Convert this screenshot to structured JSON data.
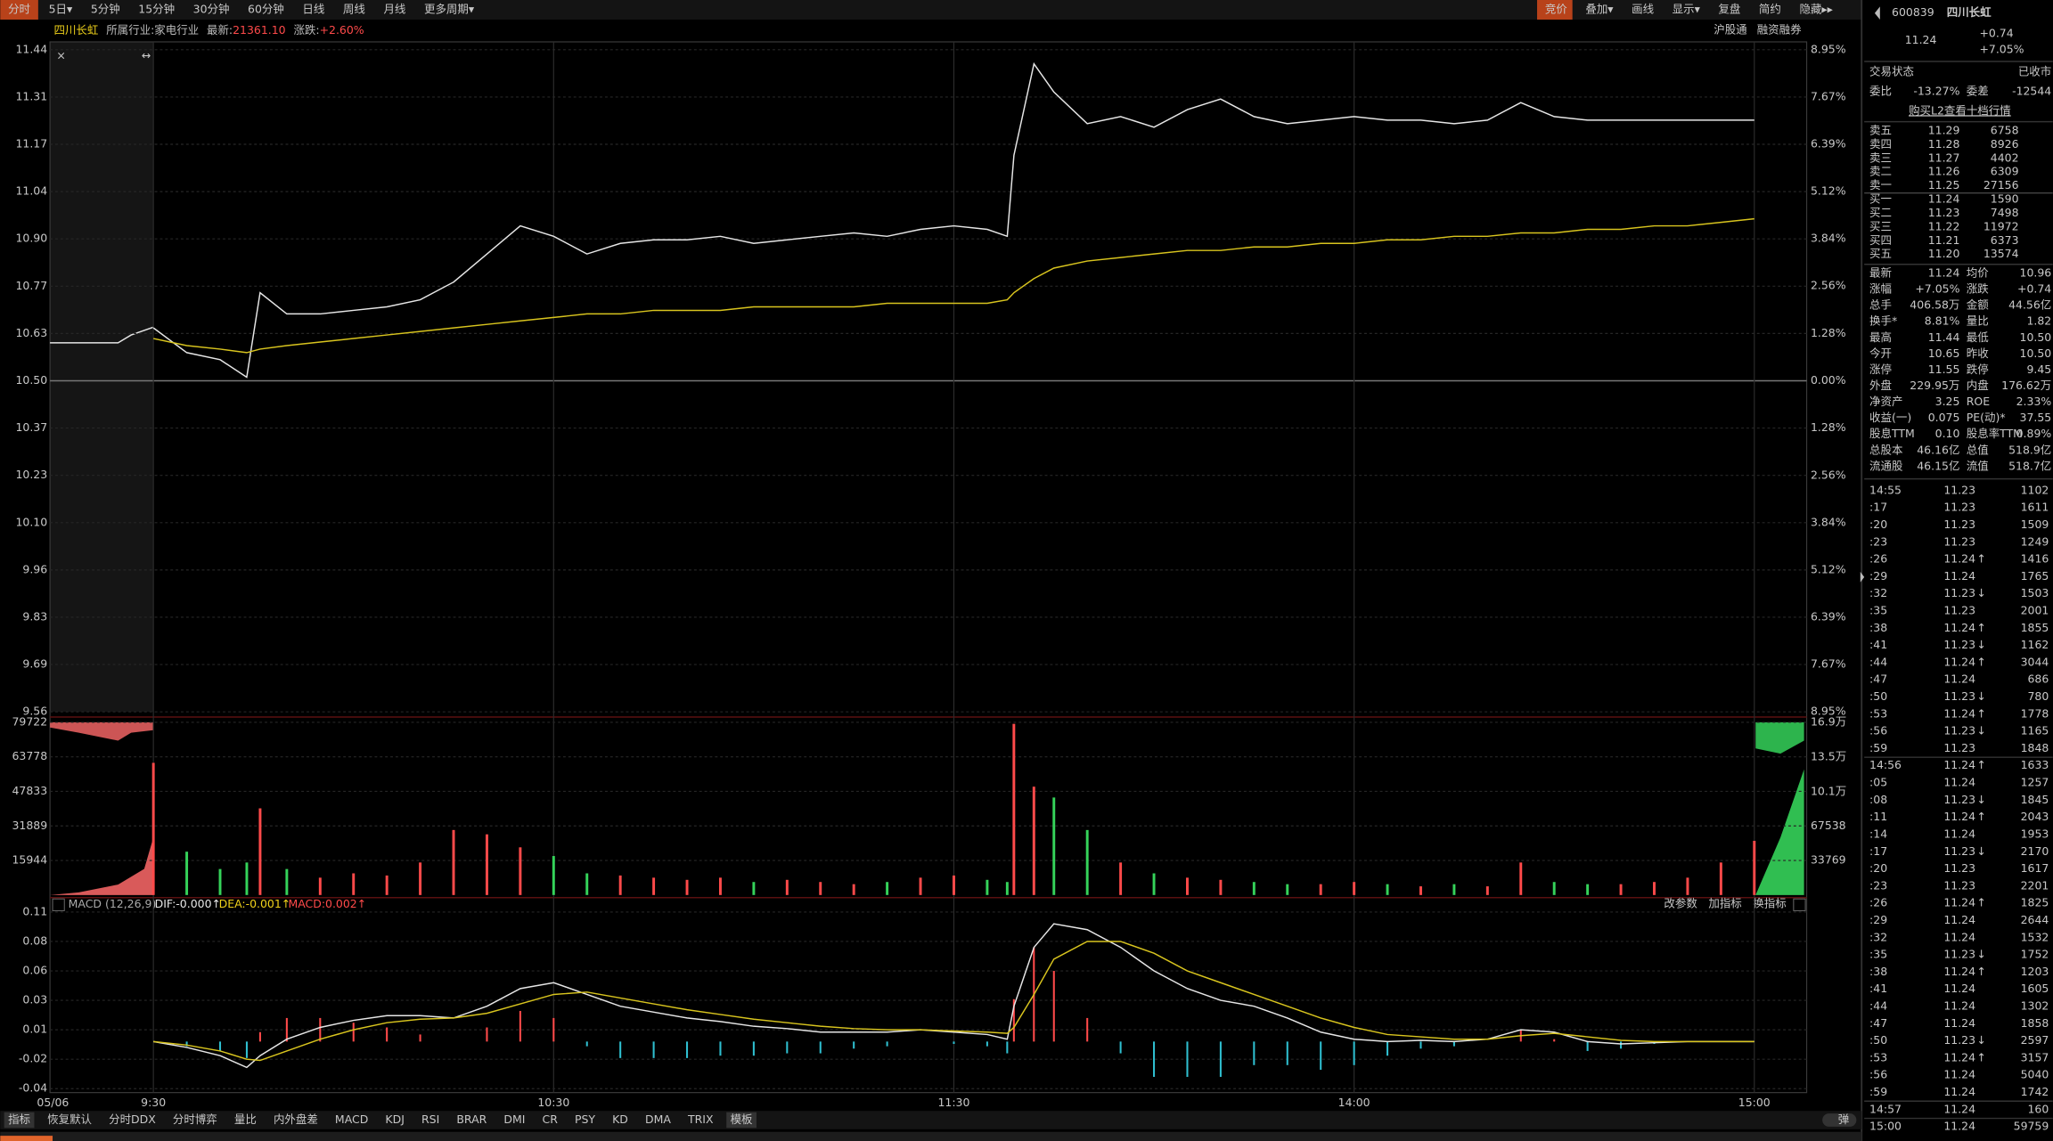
{
  "toolbar": {
    "left": [
      "分时",
      "5日▾",
      "5分钟",
      "15分钟",
      "30分钟",
      "60分钟",
      "日线",
      "周线",
      "月线",
      "更多周期▾"
    ],
    "right": [
      "竞价",
      "叠加▾",
      "画线",
      "显示▾",
      "复盘",
      "简约",
      "隐藏▸▸"
    ]
  },
  "info": {
    "name": "四川长虹",
    "industry_label": "所属行业:",
    "industry": "家电行业",
    "latest_label": "最新:",
    "latest": "21361.10",
    "change_label": "涨跌:",
    "change": "+2.60%",
    "right": [
      "沪股通",
      "融资融券"
    ]
  },
  "date": "05/06",
  "macd_legend": {
    "name": "MACD (12,26,9)",
    "dif": "DIF:-0.000↑",
    "dea": "DEA:-0.001↑",
    "macd": "MACD:0.002↑"
  },
  "indicator_actions": [
    "改参数",
    "加指标",
    "换指标"
  ],
  "bottom_tabs": [
    "指标",
    "恢复默认",
    "分时DDX",
    "分时博弈",
    "量比",
    "内外盘差",
    "MACD",
    "KDJ",
    "RSI",
    "BRAR",
    "DMI",
    "CR",
    "PSY",
    "KD",
    "DMA",
    "TRIX",
    "模板"
  ],
  "bottom_right": "弹",
  "chart_data": [
    {
      "type": "line",
      "x": [
        0,
        5,
        10,
        14,
        16,
        20,
        25,
        30,
        35,
        40,
        45,
        50,
        55,
        60,
        65,
        70,
        75,
        80,
        85,
        90,
        95,
        100,
        105,
        110,
        115,
        120,
        125,
        128,
        129,
        132,
        135,
        140,
        145,
        150,
        155,
        160,
        165,
        170,
        175,
        180,
        185,
        190,
        195,
        200,
        205,
        210,
        215,
        220,
        225,
        230,
        235,
        240
      ],
      "series": [
        {
          "color": "#e6e6e6",
          "values": [
            10.65,
            10.58,
            10.56,
            10.51,
            10.75,
            10.69,
            10.69,
            10.7,
            10.71,
            10.73,
            10.78,
            10.86,
            10.94,
            10.91,
            10.86,
            10.89,
            10.9,
            10.9,
            10.91,
            10.89,
            10.9,
            10.91,
            10.92,
            10.91,
            10.93,
            10.94,
            10.93,
            10.91,
            11.14,
            11.4,
            11.32,
            11.23,
            11.25,
            11.22,
            11.27,
            11.3,
            11.25,
            11.23,
            11.24,
            11.25,
            11.24,
            11.24,
            11.23,
            11.24,
            11.29,
            11.25,
            11.24,
            11.24,
            11.24,
            11.24,
            11.24,
            11.24
          ]
        },
        {
          "color": "#d8c41e",
          "values": [
            10.62,
            10.6,
            10.59,
            10.58,
            10.59,
            10.6,
            10.61,
            10.62,
            10.63,
            10.64,
            10.65,
            10.66,
            10.67,
            10.68,
            10.69,
            10.69,
            10.7,
            10.7,
            10.7,
            10.71,
            10.71,
            10.71,
            10.71,
            10.72,
            10.72,
            10.72,
            10.72,
            10.73,
            10.75,
            10.79,
            10.82,
            10.84,
            10.85,
            10.86,
            10.87,
            10.87,
            10.88,
            10.88,
            10.89,
            10.89,
            10.9,
            10.9,
            10.91,
            10.91,
            10.92,
            10.92,
            10.93,
            10.93,
            10.94,
            10.94,
            10.95,
            10.96
          ]
        }
      ],
      "xlim": [
        0,
        240
      ],
      "xticks": [
        {
          "value": 0,
          "label": "9:30"
        },
        {
          "value": 60,
          "label": "10:30"
        },
        {
          "value": 120,
          "label": "11:30"
        },
        {
          "value": 180,
          "label": "14:00"
        },
        {
          "value": 240,
          "label": "15:00"
        }
      ],
      "ylim": [
        9.56,
        11.44
      ],
      "yticks": [
        11.44,
        {
          "value": 11.3057,
          "label": "11.31"
        },
        {
          "value": 11.1714,
          "label": "11.17"
        },
        {
          "value": 11.0371,
          "label": "11.04"
        },
        {
          "value": 10.9029,
          "label": "10.90"
        },
        {
          "value": 10.7686,
          "label": "10.77"
        },
        {
          "value": 10.6343,
          "label": "10.63"
        },
        {
          "value": 10.5,
          "label": "10.50"
        },
        {
          "value": 10.3657,
          "label": "10.37"
        },
        {
          "value": 10.2314,
          "label": "10.23"
        },
        {
          "value": 10.0971,
          "label": "10.10"
        },
        {
          "value": 9.9629,
          "label": "9.96"
        },
        {
          "value": 9.8286,
          "label": "9.83"
        },
        {
          "value": 9.6943,
          "label": "9.69"
        },
        9.56
      ],
      "y2lim": [
        -8.95,
        8.95
      ],
      "y2ticks": [
        {
          "value": 8.95,
          "label": "8.95%"
        },
        {
          "value": 7.67,
          "label": "7.67%"
        },
        {
          "value": 6.39,
          "label": "6.39%"
        },
        {
          "value": 5.12,
          "label": "5.12%"
        },
        {
          "value": 3.84,
          "label": "3.84%"
        },
        {
          "value": 2.56,
          "label": "2.56%"
        },
        {
          "value": 1.28,
          "label": "1.28%"
        },
        {
          "value": 0,
          "label": "0.00%"
        },
        {
          "value": -1.28,
          "label": "1.28%"
        },
        {
          "value": -2.56,
          "label": "2.56%"
        },
        {
          "value": -3.84,
          "label": "3.84%"
        },
        {
          "value": -5.12,
          "label": "5.12%"
        },
        {
          "value": -6.39,
          "label": "6.39%"
        },
        {
          "value": -7.67,
          "label": "7.67%"
        },
        {
          "value": -8.95,
          "label": "8.95%"
        }
      ],
      "grid": true
    },
    {
      "type": "bar",
      "x": [
        0,
        5,
        10,
        14,
        16,
        20,
        25,
        30,
        35,
        40,
        45,
        50,
        55,
        60,
        65,
        70,
        75,
        80,
        85,
        90,
        95,
        100,
        105,
        110,
        115,
        120,
        125,
        128,
        129,
        132,
        135,
        140,
        145,
        150,
        155,
        160,
        165,
        170,
        175,
        180,
        185,
        190,
        195,
        200,
        205,
        210,
        215,
        220,
        225,
        230,
        235,
        240
      ],
      "values": [
        61000,
        20000,
        12000,
        15000,
        40000,
        12000,
        8000,
        10000,
        9000,
        15000,
        30000,
        28000,
        22000,
        18000,
        10000,
        9000,
        8000,
        7000,
        8000,
        6000,
        7000,
        6000,
        5000,
        6000,
        8000,
        9000,
        7000,
        6000,
        79000,
        50000,
        45000,
        30000,
        15000,
        10000,
        8000,
        7000,
        6000,
        5000,
        5000,
        6000,
        5000,
        4000,
        5000,
        4000,
        15000,
        6000,
        5000,
        5000,
        6000,
        8000,
        15000,
        25000
      ],
      "up_color": "#ff4a4a",
      "down_color": "#35d35a",
      "xlim": [
        0,
        240
      ],
      "ylim": [
        0,
        79722
      ],
      "yticks": [
        15944,
        31889,
        47833,
        63778,
        79722
      ],
      "y2lim": [
        0,
        169000
      ],
      "y2ticks": [
        33769,
        67538,
        {
          "value": 101000,
          "label": "10.1万"
        },
        {
          "value": 135000,
          "label": "13.5万"
        },
        {
          "value": 169000,
          "label": "16.9万"
        }
      ]
    },
    {
      "type": "macd",
      "x": [
        0,
        5,
        10,
        14,
        16,
        20,
        25,
        30,
        35,
        40,
        45,
        50,
        55,
        60,
        65,
        70,
        75,
        80,
        85,
        90,
        95,
        100,
        105,
        110,
        115,
        120,
        125,
        128,
        129,
        132,
        135,
        140,
        145,
        150,
        155,
        160,
        165,
        170,
        175,
        180,
        185,
        190,
        195,
        200,
        205,
        210,
        215,
        220,
        225,
        230,
        235,
        240
      ],
      "series": [
        {
          "color": "#e6e6e6",
          "values": [
            0,
            -0.005,
            -0.012,
            -0.022,
            -0.012,
            0.002,
            0.012,
            0.018,
            0.022,
            0.022,
            0.02,
            0.03,
            0.045,
            0.05,
            0.04,
            0.03,
            0.025,
            0.02,
            0.017,
            0.013,
            0.011,
            0.008,
            0.008,
            0.008,
            0.01,
            0.008,
            0.006,
            0.002,
            0.03,
            0.08,
            0.1,
            0.095,
            0.08,
            0.06,
            0.045,
            0.035,
            0.03,
            0.02,
            0.008,
            0.002,
            0,
            0.001,
            0,
            0.002,
            0.01,
            0.008,
            0,
            -0.002,
            -0.001,
            0,
            0,
            0
          ]
        },
        {
          "color": "#d8c41e",
          "values": [
            0,
            -0.003,
            -0.008,
            -0.015,
            -0.016,
            -0.008,
            0.002,
            0.01,
            0.016,
            0.019,
            0.02,
            0.024,
            0.032,
            0.04,
            0.042,
            0.037,
            0.032,
            0.027,
            0.023,
            0.019,
            0.016,
            0.013,
            0.011,
            0.01,
            0.01,
            0.009,
            0.008,
            0.007,
            0.012,
            0.04,
            0.07,
            0.085,
            0.085,
            0.075,
            0.06,
            0.05,
            0.04,
            0.03,
            0.02,
            0.012,
            0.006,
            0.004,
            0.002,
            0.002,
            0.005,
            0.007,
            0.004,
            0.001,
            0,
            0,
            0,
            0
          ]
        }
      ],
      "macd": [
        0,
        -0.004,
        -0.008,
        -0.014,
        0.008,
        0.02,
        0.02,
        0.016,
        0.012,
        0.006,
        0,
        0.012,
        0.026,
        0.02,
        -0.004,
        -0.014,
        -0.014,
        -0.014,
        -0.012,
        -0.012,
        -0.01,
        -0.01,
        -0.006,
        -0.004,
        0,
        -0.002,
        -0.004,
        -0.01,
        0.036,
        0.08,
        0.06,
        0.02,
        -0.01,
        -0.03,
        -0.03,
        -0.03,
        -0.02,
        -0.02,
        -0.024,
        -0.02,
        -0.012,
        -0.006,
        -0.004,
        0,
        0.01,
        0.002,
        -0.008,
        -0.006,
        -0.002,
        0,
        0,
        0
      ],
      "up_color": "#ff4a4a",
      "down_color": "#2fbfd0",
      "xlim": [
        0,
        240
      ],
      "ylim": [
        -0.04,
        0.11
      ],
      "yticks": [
        0.11,
        {
          "value": 0.085,
          "label": "0.08"
        },
        0.06,
        {
          "value": 0.035,
          "label": "0.03"
        },
        0.01,
        {
          "value": -0.015,
          "label": "-0.02"
        },
        -0.04
      ]
    }
  ],
  "quote": {
    "code": "600839",
    "name": "四川长虹",
    "price": "11.24",
    "change": "+0.74",
    "pct": "+7.05%",
    "status_label": "交易状态",
    "status": "已收市",
    "wb_label": "委比",
    "wb": "-13.27%",
    "wc_label": "委差",
    "wc": "-12544",
    "l2": "购买L2查看十档行情",
    "book": [
      [
        "卖五",
        "11.29",
        "6758"
      ],
      [
        "卖四",
        "11.28",
        "8926"
      ],
      [
        "卖三",
        "11.27",
        "4402"
      ],
      [
        "卖二",
        "11.26",
        "6309"
      ],
      [
        "卖一",
        "11.25",
        "27156"
      ],
      [
        "买一",
        "11.24",
        "1590"
      ],
      [
        "买二",
        "11.23",
        "7498"
      ],
      [
        "买三",
        "11.22",
        "11972"
      ],
      [
        "买四",
        "11.21",
        "6373"
      ],
      [
        "买五",
        "11.20",
        "13574"
      ]
    ],
    "stats": [
      [
        {
          "l": "最新",
          "v": "11.24",
          "c": "#ff4a4a"
        },
        {
          "l": "均价",
          "v": "10.96",
          "c": "#ff4a4a"
        }
      ],
      [
        {
          "l": "涨幅",
          "v": "+7.05%",
          "c": "#ff4a4a"
        },
        {
          "l": "涨跌",
          "v": "+0.74",
          "c": "#ff4a4a"
        }
      ],
      [
        {
          "l": "总手",
          "v": "406.58万",
          "c": "#d8d8d8"
        },
        {
          "l": "金额",
          "v": "44.56亿",
          "c": "#33c6e0"
        }
      ],
      [
        {
          "l": "换手*",
          "v": "8.81%",
          "c": "#d8d8d8"
        },
        {
          "l": "量比",
          "v": "1.82",
          "c": "#ff4a4a"
        }
      ],
      [
        {
          "l": "最高",
          "v": "11.44",
          "c": "#ff4a4a"
        },
        {
          "l": "最低",
          "v": "10.50",
          "c": "#d8d8d8"
        }
      ],
      [
        {
          "l": "今开",
          "v": "10.65",
          "c": "#ff4a4a"
        },
        {
          "l": "昨收",
          "v": "10.50",
          "c": "#d8d8d8"
        }
      ],
      [
        {
          "l": "涨停",
          "v": "11.55",
          "c": "#ff4a4a"
        },
        {
          "l": "跌停",
          "v": "9.45",
          "c": "#35d35a"
        }
      ],
      [
        {
          "l": "外盘",
          "v": "229.95万",
          "c": "#ff4a4a"
        },
        {
          "l": "内盘",
          "v": "176.62万",
          "c": "#35d35a"
        }
      ],
      [
        {
          "l": "净资产",
          "v": "3.25",
          "c": "#d8d8d8"
        },
        {
          "l": "ROE",
          "v": "2.33%",
          "c": "#d8d8d8"
        }
      ],
      [
        {
          "l": "收益(一)",
          "v": "0.075",
          "c": "#d8d8d8"
        },
        {
          "l": "PE(动)*",
          "v": "37.55",
          "c": "#d8d8d8"
        }
      ],
      [
        {
          "l": "股息TTM",
          "v": "0.10",
          "c": "#d8d8d8"
        },
        {
          "l": "股息率TTM",
          "v": "0.89%",
          "c": "#d8d8d8"
        }
      ],
      [
        {
          "l": "总股本",
          "v": "46.16亿",
          "c": "#d8d8d8"
        },
        {
          "l": "总值",
          "v": "518.9亿",
          "c": "#d8d8d8"
        }
      ],
      [
        {
          "l": "流通股",
          "v": "46.15亿",
          "c": "#d8d8d8"
        },
        {
          "l": "流值",
          "v": "518.7亿",
          "c": "#d8d8d8"
        }
      ]
    ],
    "ticks": [
      {
        "t": "14:55",
        "p": "11.23",
        "v": "1102"
      },
      {
        "t": ":17",
        "p": "11.23",
        "v": "1611"
      },
      {
        "t": ":20",
        "p": "11.23",
        "v": "1509"
      },
      {
        "t": ":23",
        "p": "11.23",
        "v": "1249"
      },
      {
        "t": ":26",
        "p": "11.24",
        "d": "↑",
        "v": "1416"
      },
      {
        "t": ":29",
        "p": "11.24",
        "v": "1765"
      },
      {
        "t": ":32",
        "p": "11.23",
        "d": "↓",
        "v": "1503"
      },
      {
        "t": ":35",
        "p": "11.23",
        "v": "2001"
      },
      {
        "t": ":38",
        "p": "11.24",
        "d": "↑",
        "v": "1855"
      },
      {
        "t": ":41",
        "p": "11.23",
        "d": "↓",
        "v": "1162"
      },
      {
        "t": ":44",
        "p": "11.24",
        "d": "↑",
        "v": "3044"
      },
      {
        "t": ":47",
        "p": "11.24",
        "v": "686"
      },
      {
        "t": ":50",
        "p": "11.23",
        "d": "↓",
        "v": "780"
      },
      {
        "t": ":53",
        "p": "11.24",
        "d": "↑",
        "v": "1778"
      },
      {
        "t": ":56",
        "p": "11.23",
        "d": "↓",
        "v": "1165"
      },
      {
        "t": ":59",
        "p": "11.23",
        "v": "1848"
      },
      {
        "t": "14:56",
        "p": "11.24",
        "d": "↑",
        "v": "1633"
      },
      {
        "t": ":05",
        "p": "11.24",
        "v": "1257"
      },
      {
        "t": ":08",
        "p": "11.23",
        "d": "↓",
        "v": "1845"
      },
      {
        "t": ":11",
        "p": "11.24",
        "d": "↑",
        "v": "2043"
      },
      {
        "t": ":14",
        "p": "11.24",
        "v": "1953"
      },
      {
        "t": ":17",
        "p": "11.23",
        "d": "↓",
        "v": "2170"
      },
      {
        "t": ":20",
        "p": "11.23",
        "v": "1617"
      },
      {
        "t": ":23",
        "p": "11.23",
        "v": "2201"
      },
      {
        "t": ":26",
        "p": "11.24",
        "d": "↑",
        "v": "1825"
      },
      {
        "t": ":29",
        "p": "11.24",
        "v": "2644"
      },
      {
        "t": ":32",
        "p": "11.24",
        "v": "1532"
      },
      {
        "t": ":35",
        "p": "11.23",
        "d": "↓",
        "v": "1752"
      },
      {
        "t": ":38",
        "p": "11.24",
        "d": "↑",
        "v": "1203"
      },
      {
        "t": ":41",
        "p": "11.24",
        "v": "1605"
      },
      {
        "t": ":44",
        "p": "11.24",
        "v": "1302"
      },
      {
        "t": ":47",
        "p": "11.24",
        "v": "1858"
      },
      {
        "t": ":50",
        "p": "11.23",
        "d": "↓",
        "v": "2597"
      },
      {
        "t": ":53",
        "p": "11.24",
        "d": "↑",
        "v": "3157"
      },
      {
        "t": ":56",
        "p": "11.24",
        "v": "5040"
      },
      {
        "t": ":59",
        "p": "11.24",
        "v": "1742"
      },
      {
        "t": "14:57",
        "p": "11.24",
        "v": "160"
      },
      {
        "t": "15:00",
        "p": "11.24",
        "v": "59759"
      }
    ]
  }
}
